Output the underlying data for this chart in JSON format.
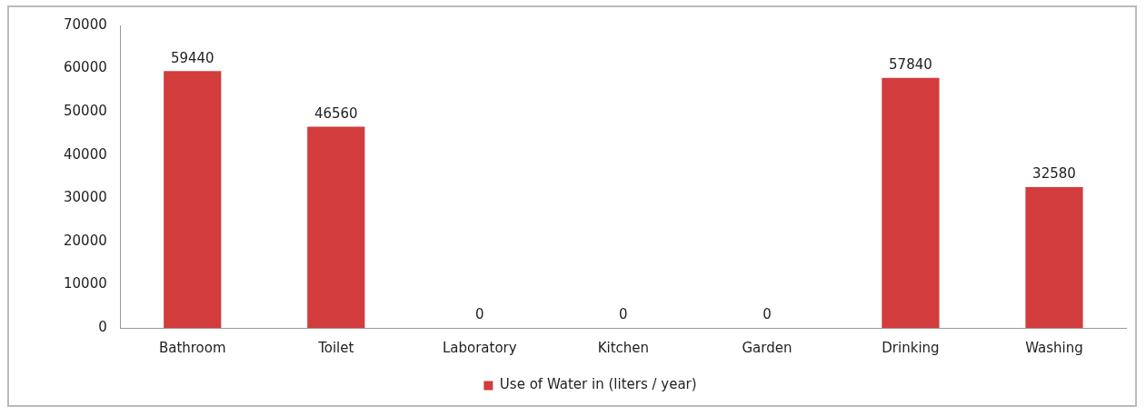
{
  "chart_data": {
    "type": "bar",
    "categories": [
      "Bathroom",
      "Toilet",
      "Laboratory",
      "Kitchen",
      "Garden",
      "Drinking",
      "Washing"
    ],
    "series": [
      {
        "name": "Use of Water in (liters / year)",
        "color": "#d23c3c",
        "values": [
          59440,
          46560,
          0,
          0,
          0,
          57840,
          32580
        ]
      }
    ],
    "ylim": [
      0,
      70000
    ],
    "yticks": [
      0,
      10000,
      20000,
      30000,
      40000,
      50000,
      60000,
      70000
    ],
    "grid": false,
    "legend": "bottom",
    "data_labels": true
  }
}
